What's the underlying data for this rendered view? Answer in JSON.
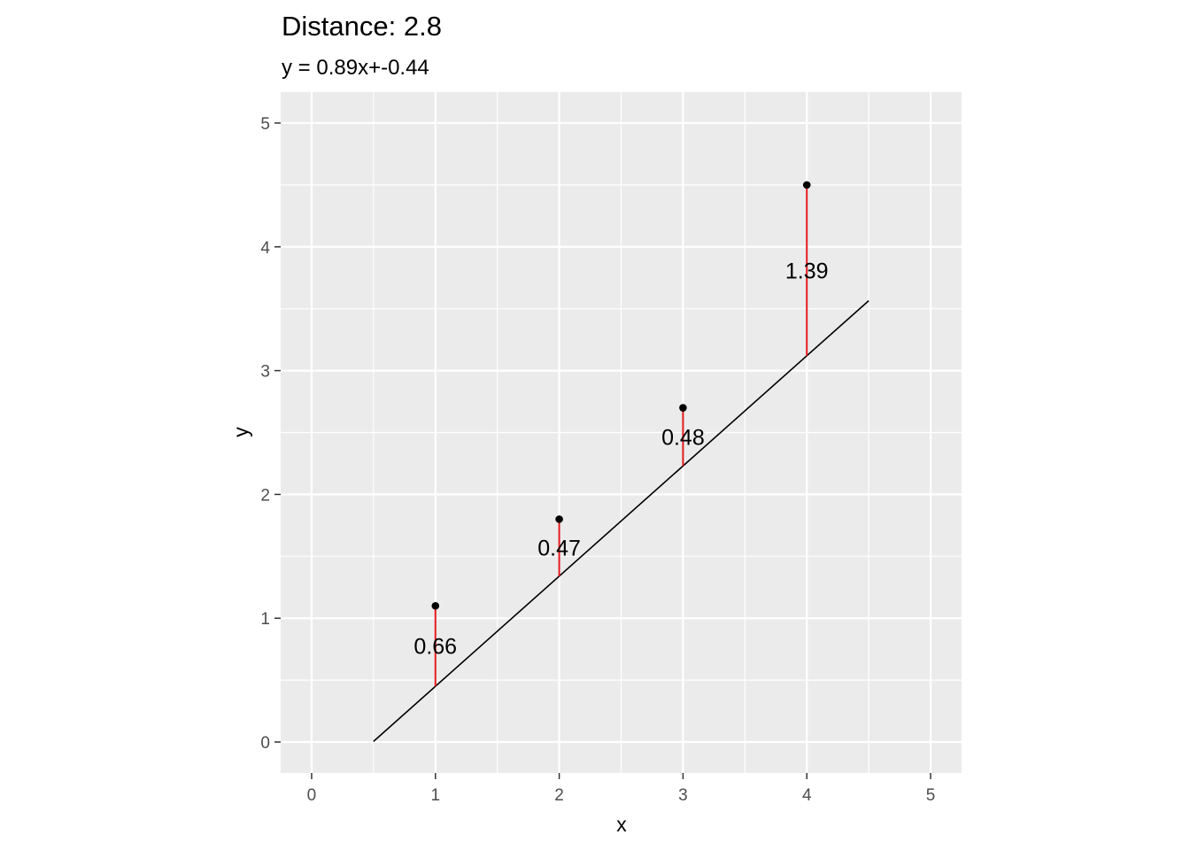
{
  "chart_data": {
    "type": "scatter",
    "title": "Distance: 2.8",
    "subtitle": "y = 0.89x+-0.44",
    "xlabel": "x",
    "ylabel": "y",
    "xlim": [
      -0.25,
      5.25
    ],
    "ylim": [
      -0.25,
      5.25
    ],
    "x_ticks": [
      "0",
      "1",
      "2",
      "3",
      "4",
      "5"
    ],
    "y_ticks": [
      "0",
      "1",
      "2",
      "3",
      "4",
      "5"
    ],
    "grid": true,
    "points": [
      {
        "x": 1,
        "y": 1.1,
        "label": "0.66"
      },
      {
        "x": 2,
        "y": 1.8,
        "label": "0.47"
      },
      {
        "x": 3,
        "y": 2.7,
        "label": "0.48"
      },
      {
        "x": 4,
        "y": 4.5,
        "label": "1.39"
      }
    ],
    "fit_line": {
      "slope": 0.89,
      "intercept": -0.44,
      "x_range": [
        0.5,
        4.5
      ]
    },
    "colors": {
      "panel": "#ebebeb",
      "grid": "#ffffff",
      "points": "#000000",
      "fit_line": "#000000",
      "residuals": "#e41a1c",
      "tick_text": "#4d4d4d",
      "tick_marks": "#333333"
    }
  }
}
